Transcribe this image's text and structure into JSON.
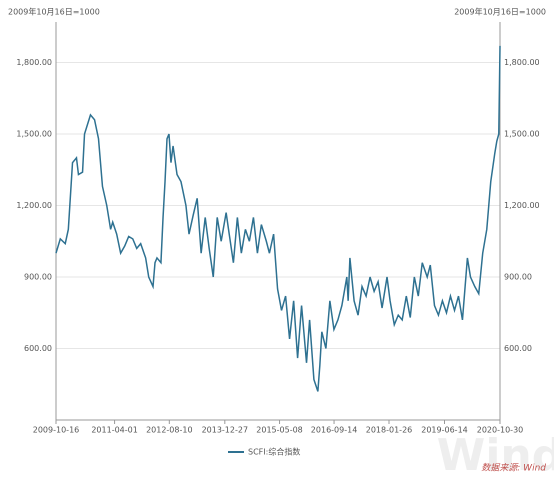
{
  "chart_data": {
    "type": "line",
    "left_note": "2009年10月16日=1000",
    "right_note": "2009年10月16日=1000",
    "source": "数据来源: Wind",
    "watermark": "Wind",
    "xlim": [
      "2009-10-16",
      "2020-10-30"
    ],
    "xticks": [
      "2009-10-16",
      "2011-04-01",
      "2012-08-10",
      "2013-12-27",
      "2015-05-08",
      "2016-09-14",
      "2018-01-26",
      "2019-06-14",
      "2020-10-30"
    ],
    "ylim": [
      300,
      1970
    ],
    "yticks": [
      {
        "value": 600,
        "label": "600.00"
      },
      {
        "value": 900,
        "label": "900.00"
      },
      {
        "value": 1200,
        "label": "1,200.00"
      },
      {
        "value": 1500,
        "label": "1,500.00"
      },
      {
        "value": 1800,
        "label": "1,800.00"
      }
    ],
    "grid": true,
    "legend": "bottom",
    "x": [
      "2009-10-16",
      "2009-11-24",
      "2010-01-08",
      "2010-02-05",
      "2010-03-15",
      "2010-04-20",
      "2010-05-08",
      "2010-06-14",
      "2010-07-02",
      "2010-08-25",
      "2010-10-01",
      "2010-11-06",
      "2010-12-12",
      "2011-01-20",
      "2011-02-24",
      "2011-03-15",
      "2011-04-20",
      "2011-05-26",
      "2011-07-02",
      "2011-08-07",
      "2011-09-13",
      "2011-10-19",
      "2011-11-24",
      "2012-01-08",
      "2012-02-05",
      "2012-03-15",
      "2012-04-02",
      "2012-04-20",
      "2012-05-26",
      "2012-06-14",
      "2012-07-02",
      "2012-07-20",
      "2012-08-07",
      "2012-08-25",
      "2012-09-13",
      "2012-10-19",
      "2012-11-24",
      "2013-01-08",
      "2013-02-05",
      "2013-03-15",
      "2013-04-20",
      "2013-05-26",
      "2013-07-02",
      "2013-08-07",
      "2013-09-13",
      "2013-10-19",
      "2013-11-24",
      "2014-01-08",
      "2014-02-05",
      "2014-03-15",
      "2014-04-20",
      "2014-05-26",
      "2014-07-02",
      "2014-08-07",
      "2014-09-13",
      "2014-10-19",
      "2014-11-24",
      "2015-01-08",
      "2015-02-05",
      "2015-03-15",
      "2015-04-20",
      "2015-05-26",
      "2015-07-02",
      "2015-08-07",
      "2015-09-13",
      "2015-10-19",
      "2015-11-24",
      "2016-01-08",
      "2016-02-05",
      "2016-03-15",
      "2016-04-20",
      "2016-05-08",
      "2016-05-26",
      "2016-07-02",
      "2016-08-07",
      "2016-09-13",
      "2016-10-19",
      "2016-11-24",
      "2017-01-08",
      "2017-01-20",
      "2017-02-05",
      "2017-03-15",
      "2017-04-20",
      "2017-05-26",
      "2017-07-02",
      "2017-08-07",
      "2017-09-13",
      "2017-10-19",
      "2017-11-24",
      "2018-01-08",
      "2018-02-05",
      "2018-03-15",
      "2018-04-20",
      "2018-05-26",
      "2018-07-02",
      "2018-08-07",
      "2018-09-13",
      "2018-10-19",
      "2018-11-24",
      "2019-01-08",
      "2019-02-05",
      "2019-03-15",
      "2019-04-20",
      "2019-05-26",
      "2019-07-02",
      "2019-08-07",
      "2019-09-13",
      "2019-10-19",
      "2019-11-24",
      "2020-01-08",
      "2020-02-05",
      "2020-03-15",
      "2020-04-20",
      "2020-05-26",
      "2020-07-02",
      "2020-08-07",
      "2020-09-13",
      "2020-10-01",
      "2020-10-19",
      "2020-10-30"
    ],
    "series": [
      {
        "name": "SCFI:综合指数",
        "color": "#2e7191",
        "values": [
          1000,
          1060,
          1040,
          1100,
          1380,
          1400,
          1330,
          1340,
          1500,
          1580,
          1560,
          1480,
          1280,
          1200,
          1100,
          1130,
          1080,
          1000,
          1030,
          1070,
          1060,
          1020,
          1040,
          980,
          900,
          860,
          960,
          980,
          960,
          1150,
          1300,
          1480,
          1500,
          1380,
          1450,
          1330,
          1300,
          1200,
          1080,
          1160,
          1230,
          1000,
          1150,
          1020,
          900,
          1150,
          1050,
          1170,
          1080,
          960,
          1150,
          1000,
          1100,
          1050,
          1150,
          1000,
          1120,
          1050,
          1000,
          1080,
          850,
          760,
          820,
          640,
          800,
          560,
          780,
          540,
          720,
          470,
          420,
          530,
          670,
          600,
          800,
          680,
          720,
          780,
          900,
          800,
          980,
          800,
          740,
          860,
          820,
          900,
          840,
          880,
          770,
          900,
          800,
          700,
          740,
          720,
          820,
          730,
          900,
          820,
          960,
          900,
          950,
          780,
          740,
          800,
          750,
          820,
          760,
          820,
          720,
          980,
          900,
          860,
          830,
          1000,
          1100,
          1300,
          1420,
          1470,
          1500,
          1870
        ]
      }
    ]
  }
}
